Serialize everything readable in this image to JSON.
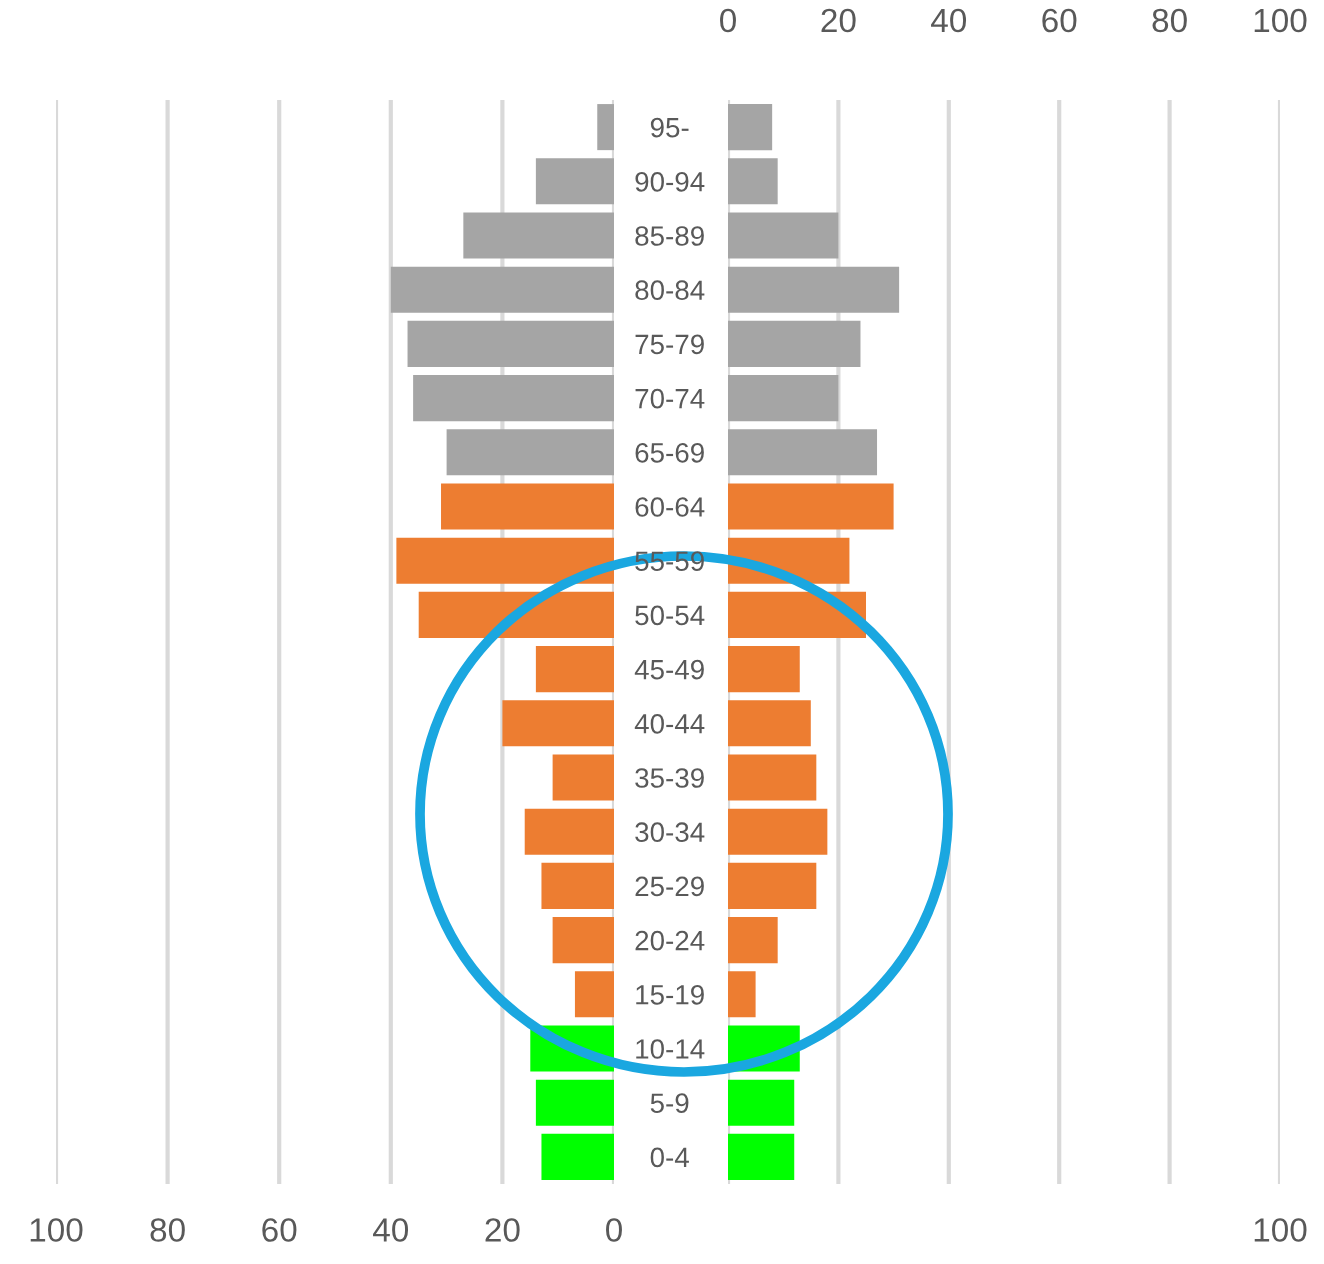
{
  "chart_data": [
    {
      "type": "bar",
      "orientation": "horizontal",
      "values": [
        3,
        14,
        27,
        40,
        37,
        36,
        30,
        31,
        39,
        35,
        14,
        20,
        11,
        16,
        13,
        11,
        7,
        15,
        14,
        13
      ],
      "colors": [
        "#a5a5a5",
        "#a5a5a5",
        "#a5a5a5",
        "#a5a5a5",
        "#a5a5a5",
        "#a5a5a5",
        "#a5a5a5",
        "#ed7d31",
        "#ed7d31",
        "#ed7d31",
        "#ed7d31",
        "#ed7d31",
        "#ed7d31",
        "#ed7d31",
        "#ed7d31",
        "#ed7d31",
        "#ed7d31",
        "#00ff00",
        "#00ff00",
        "#00ff00"
      ],
      "xlim": [
        100,
        0
      ],
      "xticks": [
        100,
        80,
        60,
        40,
        20,
        0
      ],
      "grid": "x",
      "tick_labels": "x"
    },
    {
      "type": "bar",
      "orientation": "horizontal",
      "categories": [
        "95-",
        "90-94",
        "85-89",
        "80-84",
        "75-79",
        "70-74",
        "65-69",
        "60-64",
        "55-59",
        "50-54",
        "45-49",
        "40-44",
        "35-39",
        "30-34",
        "25-29",
        "20-24",
        "15-19",
        "10-14",
        "5-9",
        "0-4"
      ],
      "values": [
        8,
        9,
        20,
        31,
        24,
        20,
        27,
        30,
        22,
        25,
        13,
        15,
        16,
        18,
        16,
        9,
        5,
        13,
        12,
        12
      ],
      "colors": [
        "#a5a5a5",
        "#a5a5a5",
        "#a5a5a5",
        "#a5a5a5",
        "#a5a5a5",
        "#a5a5a5",
        "#a5a5a5",
        "#ed7d31",
        "#ed7d31",
        "#ed7d31",
        "#ed7d31",
        "#ed7d31",
        "#ed7d31",
        "#ed7d31",
        "#ed7d31",
        "#ed7d31",
        "#ed7d31",
        "#00ff00",
        "#00ff00",
        "#00ff00"
      ],
      "xlim": [
        0,
        100
      ],
      "xticks": [
        {
          "value": 0,
          "label": null
        },
        {
          "value": 20,
          "label": null
        },
        {
          "value": 40,
          "label": null
        },
        {
          "value": 60,
          "label": null
        },
        {
          "value": 80,
          "label": null
        },
        100
      ],
      "x2lim": [
        0,
        100
      ],
      "x2ticks": [
        0,
        20,
        40,
        60,
        80,
        100
      ],
      "grid": "x"
    }
  ]
}
